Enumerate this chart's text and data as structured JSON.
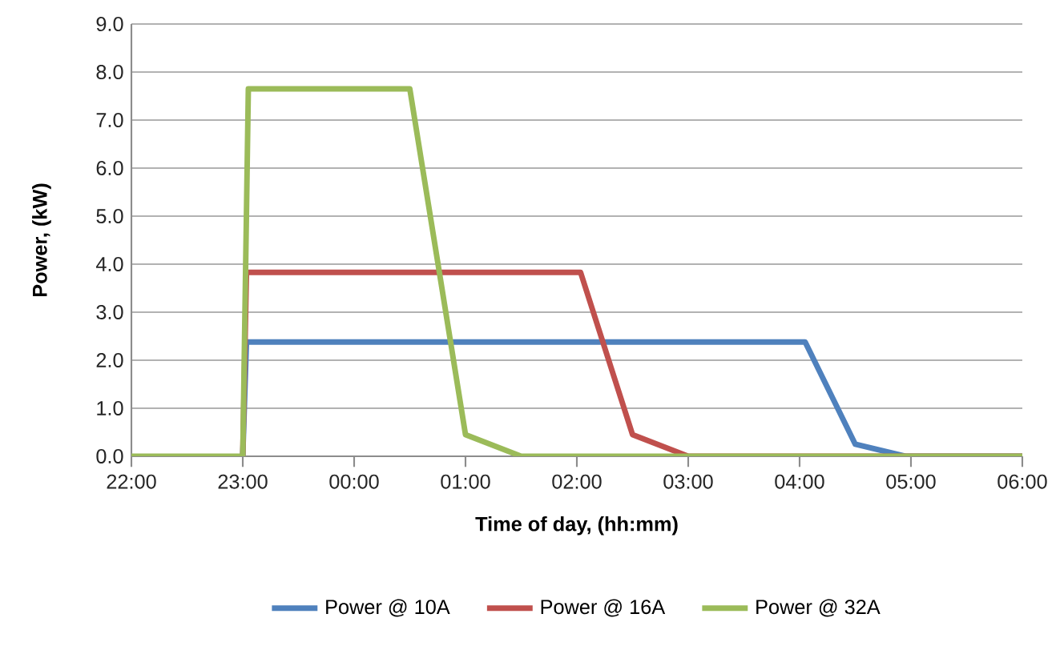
{
  "chart_data": {
    "type": "line",
    "xlabel": "Time of day, (hh:mm)",
    "ylabel": "Power, (kW)",
    "xlim": [
      "2000-01-01T22:00",
      "2000-01-02T06:00"
    ],
    "ylim": [
      0,
      9
    ],
    "xticks": [
      {
        "value": "2000-01-01T22:00",
        "label": "22:00"
      },
      {
        "value": "2000-01-01T23:00",
        "label": "23:00"
      },
      {
        "value": "2000-01-02T00:00",
        "label": "00:00"
      },
      {
        "value": "2000-01-02T01:00",
        "label": "01:00"
      },
      {
        "value": "2000-01-02T02:00",
        "label": "02:00"
      },
      {
        "value": "2000-01-02T03:00",
        "label": "03:00"
      },
      {
        "value": "2000-01-02T04:00",
        "label": "04:00"
      },
      {
        "value": "2000-01-02T05:00",
        "label": "05:00"
      },
      {
        "value": "2000-01-02T06:00",
        "label": "06:00"
      }
    ],
    "yticks": [
      {
        "value": 0,
        "label": "0.0"
      },
      {
        "value": 1,
        "label": "1.0"
      },
      {
        "value": 2,
        "label": "2.0"
      },
      {
        "value": 3,
        "label": "3.0"
      },
      {
        "value": 4,
        "label": "4.0"
      },
      {
        "value": 5,
        "label": "5.0"
      },
      {
        "value": 6,
        "label": "6.0"
      },
      {
        "value": 7,
        "label": "7.0"
      },
      {
        "value": 8,
        "label": "8.0"
      },
      {
        "value": 9,
        "label": "9.0"
      }
    ],
    "grid": "y",
    "legend": "bottom",
    "marker": "none",
    "line_style": "solid",
    "series": [
      {
        "name": "Power @ 10A",
        "color": "#4f81bd",
        "x": [
          "2000-01-01T23:00",
          "2000-01-01T23:02",
          "2000-01-02T04:03",
          "2000-01-02T04:30",
          "2000-01-02T04:57",
          "2000-01-02T06:00"
        ],
        "values": [
          0,
          2.38,
          2.38,
          0.25,
          0,
          0
        ]
      },
      {
        "name": "Power @ 16A",
        "color": "#c0504d",
        "x": [
          "2000-01-01T23:00",
          "2000-01-01T23:02",
          "2000-01-02T02:02",
          "2000-01-02T02:30",
          "2000-01-02T03:00",
          "2000-01-02T06:00"
        ],
        "values": [
          0,
          3.83,
          3.83,
          0.45,
          0,
          0
        ]
      },
      {
        "name": "Power @ 32A",
        "color": "#9bbb59",
        "x": [
          "2000-01-01T22:00",
          "2000-01-01T23:00",
          "2000-01-01T23:03",
          "2000-01-02T00:30",
          "2000-01-02T01:00",
          "2000-01-02T01:30",
          "2000-01-02T06:00"
        ],
        "values": [
          0,
          0,
          7.65,
          7.65,
          0.45,
          0,
          0
        ]
      }
    ]
  }
}
